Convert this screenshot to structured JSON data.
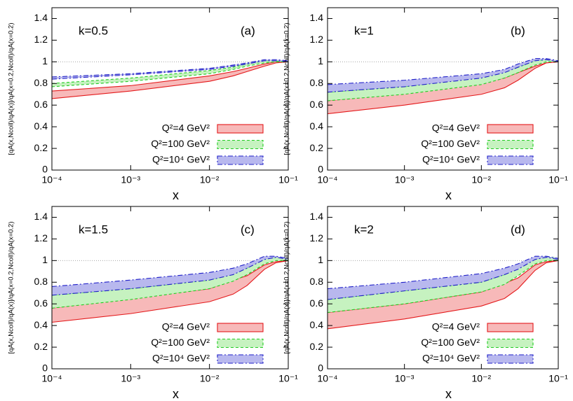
{
  "chart_data": [
    {
      "type": "band",
      "label": "k=0.5",
      "tag": "(a)",
      "xlabel": "x",
      "ylabel": "[qA(x,Ncoll)/qA(x)]/qA(x=0.2,Ncoll)/qA(x=0.2)",
      "log_x": true,
      "xlim": [
        0.0001,
        0.1
      ],
      "xticks": [
        {
          "value": 0.0001,
          "label": "10⁻⁴"
        },
        {
          "value": 0.001,
          "label": "10⁻³"
        },
        {
          "value": 0.01,
          "label": "10⁻²"
        },
        {
          "value": 0.1,
          "label": "10⁻¹"
        }
      ],
      "ylim": [
        0,
        1.5
      ],
      "yticks": [
        0,
        0.2,
        0.4,
        0.6,
        0.8,
        1,
        1.2,
        1.4
      ],
      "hline": 1,
      "legend": "lower right",
      "x": [
        0.0001,
        0.001,
        0.01,
        0.02,
        0.03,
        0.05,
        0.07,
        0.1
      ],
      "series": [
        {
          "name": "Q²=4 GeV²",
          "color": "#e41a1c",
          "fill": "#f7b9b9",
          "line_style": "solid",
          "lower": [
            0.66,
            0.73,
            0.82,
            0.87,
            0.91,
            0.96,
            0.99,
            1.0
          ],
          "upper": [
            0.73,
            0.78,
            0.87,
            0.91,
            0.94,
            0.98,
            1.0,
            1.0
          ]
        },
        {
          "name": "Q²=100 GeV²",
          "color": "#22cc22",
          "fill": "#c6f2c0",
          "line_style": "dashed",
          "lower": [
            0.77,
            0.82,
            0.89,
            0.93,
            0.96,
            0.99,
            1.0,
            1.0
          ],
          "upper": [
            0.8,
            0.85,
            0.92,
            0.95,
            0.98,
            1.01,
            1.01,
            1.0
          ]
        },
        {
          "name": "Q²=10⁴ GeV²",
          "color": "#1f1fc8",
          "fill": "#b8b8ee",
          "line_style": "dashdot",
          "lower": [
            0.84,
            0.88,
            0.93,
            0.96,
            0.98,
            1.01,
            1.01,
            1.0
          ],
          "upper": [
            0.86,
            0.89,
            0.94,
            0.97,
            0.99,
            1.02,
            1.02,
            1.01
          ]
        }
      ]
    },
    {
      "type": "band",
      "label": "k=1",
      "tag": "(b)",
      "xlabel": "x",
      "ylabel": "[qA(x,Ncoll)/qA(x)]/qA(x=0.2,Ncoll)/qA(x=0.2)",
      "log_x": true,
      "xlim": [
        0.0001,
        0.1
      ],
      "xticks": [
        {
          "value": 0.0001,
          "label": "10⁻⁴"
        },
        {
          "value": 0.001,
          "label": "10⁻³"
        },
        {
          "value": 0.01,
          "label": "10⁻²"
        },
        {
          "value": 0.1,
          "label": "10⁻¹"
        }
      ],
      "ylim": [
        0,
        1.5
      ],
      "yticks": [
        0,
        0.2,
        0.4,
        0.6,
        0.8,
        1,
        1.2,
        1.4
      ],
      "hline": 1,
      "legend": "lower right",
      "x": [
        0.0001,
        0.001,
        0.01,
        0.02,
        0.03,
        0.05,
        0.07,
        0.1
      ],
      "series": [
        {
          "name": "Q²=4 GeV²",
          "color": "#e41a1c",
          "fill": "#f7b9b9",
          "line_style": "solid",
          "lower": [
            0.52,
            0.6,
            0.7,
            0.76,
            0.83,
            0.94,
            0.99,
            1.0
          ],
          "upper": [
            0.64,
            0.71,
            0.8,
            0.85,
            0.9,
            0.96,
            0.99,
            1.0
          ]
        },
        {
          "name": "Q²=100 GeV²",
          "color": "#22cc22",
          "fill": "#c6f2c0",
          "line_style": "dashed",
          "lower": [
            0.64,
            0.7,
            0.79,
            0.85,
            0.9,
            0.97,
            1.0,
            1.0
          ],
          "upper": [
            0.72,
            0.77,
            0.86,
            0.91,
            0.95,
            1.01,
            1.02,
            1.01
          ]
        },
        {
          "name": "Q²=10⁴ GeV²",
          "color": "#1f1fc8",
          "fill": "#b8b8ee",
          "line_style": "dashdot",
          "lower": [
            0.72,
            0.77,
            0.85,
            0.9,
            0.95,
            1.01,
            1.02,
            1.0
          ],
          "upper": [
            0.79,
            0.83,
            0.89,
            0.93,
            0.98,
            1.03,
            1.03,
            1.01
          ]
        }
      ]
    },
    {
      "type": "band",
      "label": "k=1.5",
      "tag": "(c)",
      "xlabel": "x",
      "ylabel": "[qA(x,Ncoll)/qA(x)]/qA(x=0.2,Ncoll)/qA(x=0.2)",
      "log_x": true,
      "xlim": [
        0.0001,
        0.1
      ],
      "xticks": [
        {
          "value": 0.0001,
          "label": "10⁻⁴"
        },
        {
          "value": 0.001,
          "label": "10⁻³"
        },
        {
          "value": 0.01,
          "label": "10⁻²"
        },
        {
          "value": 0.1,
          "label": "10⁻¹"
        }
      ],
      "ylim": [
        0,
        1.5
      ],
      "yticks": [
        0,
        0.2,
        0.4,
        0.6,
        0.8,
        1,
        1.2,
        1.4
      ],
      "hline": 1,
      "legend": "lower right",
      "x": [
        0.0001,
        0.001,
        0.01,
        0.02,
        0.03,
        0.05,
        0.07,
        0.1
      ],
      "series": [
        {
          "name": "Q²=4 GeV²",
          "color": "#e41a1c",
          "fill": "#f7b9b9",
          "line_style": "solid",
          "lower": [
            0.43,
            0.51,
            0.62,
            0.69,
            0.77,
            0.92,
            0.98,
            1.0
          ],
          "upper": [
            0.56,
            0.65,
            0.74,
            0.82,
            0.86,
            0.96,
            0.99,
            1.0
          ]
        },
        {
          "name": "Q²=100 GeV²",
          "color": "#22cc22",
          "fill": "#c6f2c0",
          "line_style": "dashed",
          "lower": [
            0.56,
            0.64,
            0.74,
            0.81,
            0.87,
            0.97,
            1.0,
            1.0
          ],
          "upper": [
            0.68,
            0.74,
            0.82,
            0.88,
            0.93,
            1.02,
            1.03,
            1.02
          ]
        },
        {
          "name": "Q²=10⁴ GeV²",
          "color": "#1f1fc8",
          "fill": "#b8b8ee",
          "line_style": "dashdot",
          "lower": [
            0.68,
            0.74,
            0.82,
            0.87,
            0.93,
            1.01,
            1.03,
            1.01
          ],
          "upper": [
            0.76,
            0.82,
            0.89,
            0.93,
            0.97,
            1.04,
            1.04,
            1.02
          ]
        }
      ]
    },
    {
      "type": "band",
      "label": "k=2",
      "tag": "(d)",
      "xlabel": "x",
      "ylabel": "[qA(x,Ncoll)/qA(x)]/qA(x=0.2,Ncoll)/qA(x=0.2)",
      "log_x": true,
      "xlim": [
        0.0001,
        0.1
      ],
      "xticks": [
        {
          "value": 0.0001,
          "label": "10⁻⁴"
        },
        {
          "value": 0.001,
          "label": "10⁻³"
        },
        {
          "value": 0.01,
          "label": "10⁻²"
        },
        {
          "value": 0.1,
          "label": "10⁻¹"
        }
      ],
      "ylim": [
        0,
        1.5
      ],
      "yticks": [
        0,
        0.2,
        0.4,
        0.6,
        0.8,
        1,
        1.2,
        1.4
      ],
      "hline": 1,
      "legend": "lower right",
      "x": [
        0.0001,
        0.001,
        0.01,
        0.02,
        0.03,
        0.05,
        0.07,
        0.1
      ],
      "series": [
        {
          "name": "Q²=4 GeV²",
          "color": "#e41a1c",
          "fill": "#f7b9b9",
          "line_style": "solid",
          "lower": [
            0.37,
            0.46,
            0.58,
            0.65,
            0.74,
            0.91,
            0.98,
            1.0
          ],
          "upper": [
            0.52,
            0.6,
            0.71,
            0.79,
            0.84,
            0.96,
            0.99,
            1.0
          ]
        },
        {
          "name": "Q²=100 GeV²",
          "color": "#22cc22",
          "fill": "#c6f2c0",
          "line_style": "dashed",
          "lower": [
            0.52,
            0.6,
            0.71,
            0.78,
            0.86,
            0.97,
            1.0,
            1.0
          ],
          "upper": [
            0.64,
            0.72,
            0.8,
            0.87,
            0.93,
            1.02,
            1.04,
            1.02
          ]
        },
        {
          "name": "Q²=10⁴ GeV²",
          "color": "#1f1fc8",
          "fill": "#b8b8ee",
          "line_style": "dashdot",
          "lower": [
            0.64,
            0.72,
            0.8,
            0.87,
            0.92,
            1.01,
            1.03,
            1.01
          ],
          "upper": [
            0.74,
            0.8,
            0.88,
            0.93,
            0.97,
            1.04,
            1.04,
            1.02
          ]
        }
      ]
    }
  ]
}
